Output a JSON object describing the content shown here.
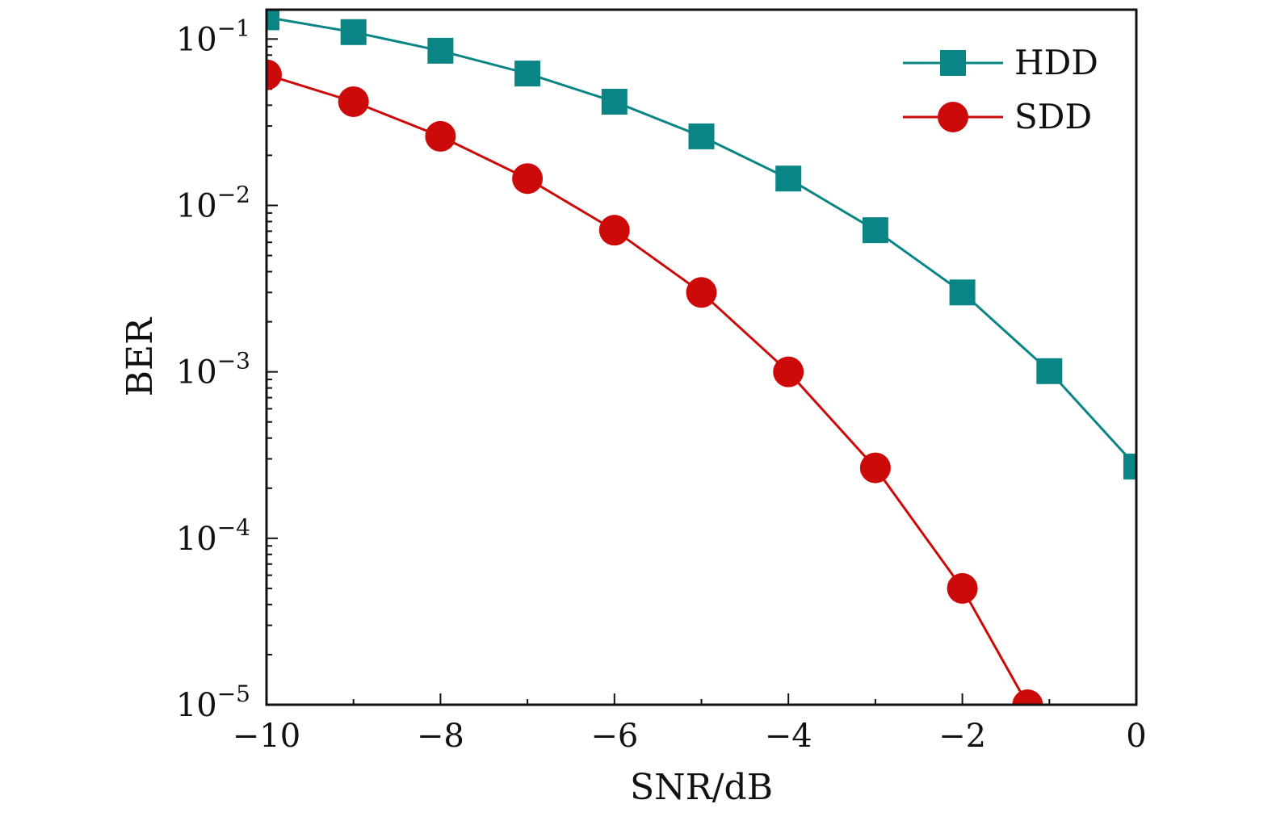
{
  "chart_data": {
    "type": "line",
    "xlabel": "SNR/dB",
    "ylabel": "BER",
    "x_scale": "linear",
    "y_scale": "log",
    "xlim": [
      -10,
      0
    ],
    "ylim": [
      1e-05,
      0.15
    ],
    "x_ticks": [
      -10,
      -8,
      -6,
      -4,
      -2,
      0
    ],
    "x_tick_labels": [
      "−10",
      "−8",
      "−6",
      "−4",
      "−2",
      "0"
    ],
    "y_ticks": [
      1e-05,
      0.0001,
      0.001,
      0.01,
      0.1
    ],
    "y_tick_labels": [
      {
        "base": "10",
        "exp": "−5"
      },
      {
        "base": "10",
        "exp": "−4"
      },
      {
        "base": "10",
        "exp": "−3"
      },
      {
        "base": "10",
        "exp": "−2"
      },
      {
        "base": "10",
        "exp": "−1"
      }
    ],
    "grid": false,
    "legend_position": "top-right",
    "series": [
      {
        "name": "HDD",
        "color": "#0a8585",
        "marker": "square",
        "x": [
          -10,
          -9,
          -8,
          -7,
          -6,
          -5,
          -4,
          -3,
          -2,
          -1,
          0
        ],
        "y": [
          0.135,
          0.11,
          0.085,
          0.062,
          0.042,
          0.026,
          0.0145,
          0.0071,
          0.003,
          0.00101,
          0.00027
        ]
      },
      {
        "name": "SDD",
        "color": "#cc0a0a",
        "marker": "circle",
        "x": [
          -10,
          -9,
          -8,
          -7,
          -6,
          -5,
          -4,
          -3,
          -2,
          -1.25
        ],
        "y": [
          0.061,
          0.042,
          0.026,
          0.0145,
          0.0071,
          0.003,
          0.001,
          0.000265,
          5e-05,
          1e-05
        ]
      }
    ]
  }
}
